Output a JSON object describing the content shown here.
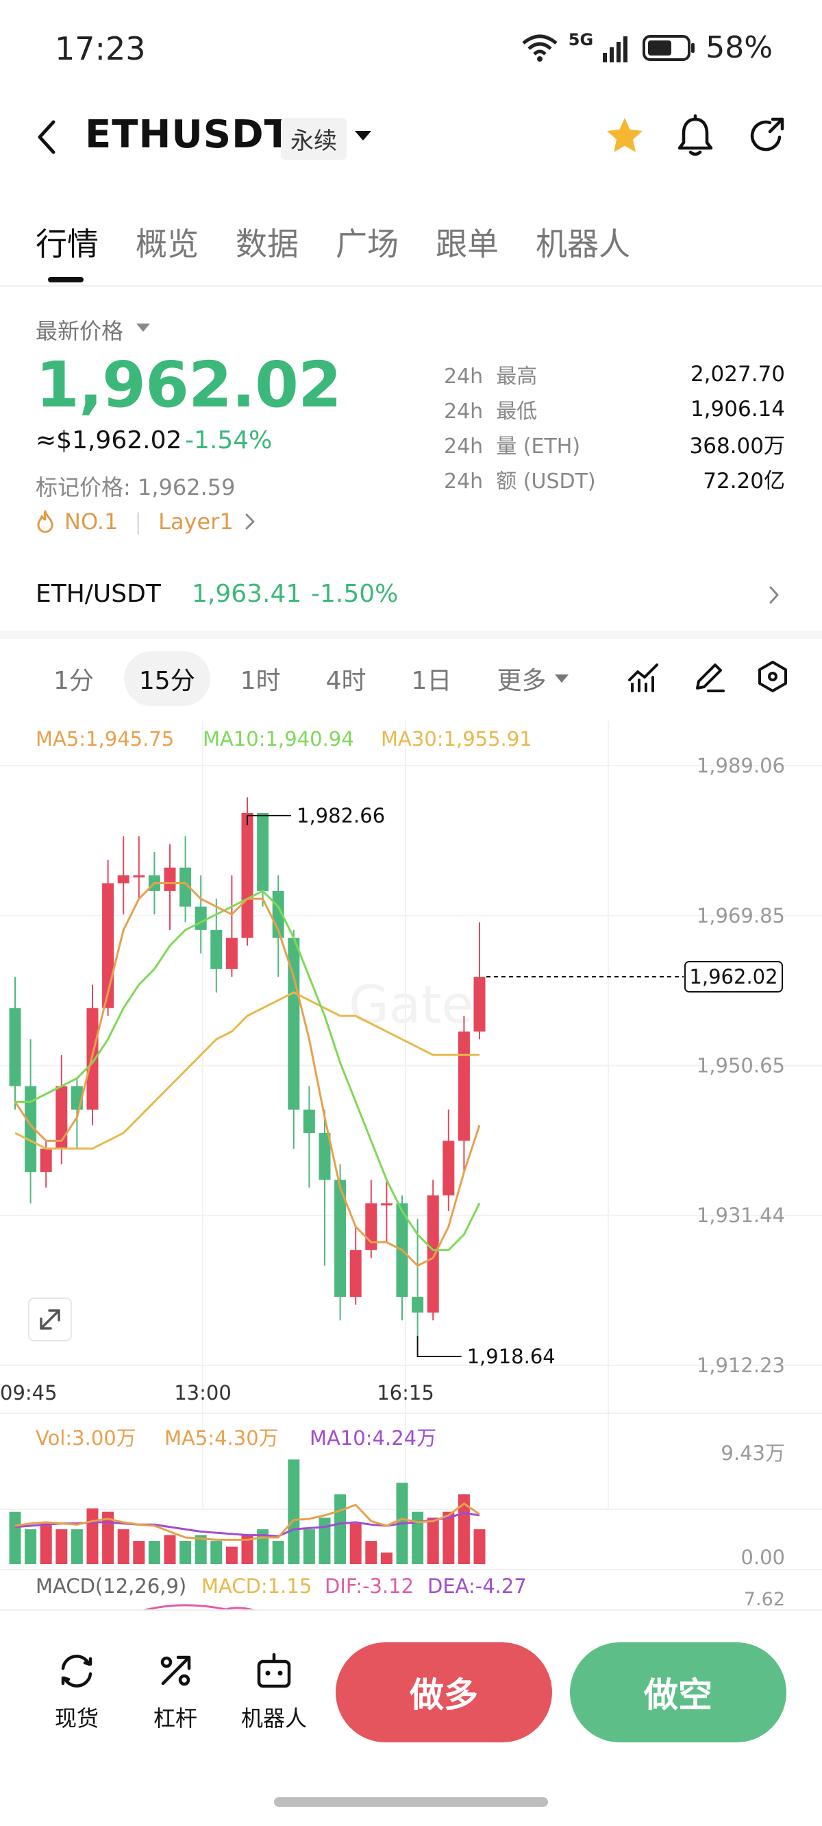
{
  "status_bar": {
    "time": "17:23",
    "network": "5G",
    "battery": "58%"
  },
  "header": {
    "pair": "ETHUSDT",
    "contract_type": "永续"
  },
  "tabs": [
    "行情",
    "概览",
    "数据",
    "广场",
    "跟单",
    "机器人"
  ],
  "price": {
    "label": "最新价格",
    "last": "1,962.02",
    "usd_approx": "≈$1,962.02",
    "change_pct": "-1.54%",
    "mark_price": "标记价格: 1,962.59",
    "rank_tag": "NO.1",
    "category_tag": "Layer1"
  },
  "stats": [
    {
      "period": "24h",
      "label": "最高",
      "value": "2,027.70"
    },
    {
      "period": "24h",
      "label": "最低",
      "value": "1,906.14"
    },
    {
      "period": "24h",
      "label": "量 (ETH)",
      "value": "368.00万"
    },
    {
      "period": "24h",
      "label": "额 (USDT)",
      "value": "72.20亿"
    }
  ],
  "spot": {
    "pair": "ETH/USDT",
    "price": "1,963.41",
    "change_pct": "-1.50%"
  },
  "intervals": [
    "1分",
    "15分",
    "1时",
    "4时",
    "1日",
    "更多"
  ],
  "active_interval": "15分",
  "colors": {
    "up": "#e5465a",
    "down": "#4cb87e",
    "ma5": "#e8a04c",
    "ma10": "#7ed957",
    "ma30": "#e8b84c",
    "macd_dif": "#e05ba8",
    "macd_dea": "#a04cd0"
  },
  "chart_data": {
    "type": "candlestick",
    "ma_legend": {
      "ma5": "MA5:1,945.75",
      "ma10": "MA10:1,940.94",
      "ma30": "MA30:1,955.91"
    },
    "y_ticks": [
      "1,989.06",
      "1,969.85",
      "1,950.65",
      "1,931.44",
      "1,912.23"
    ],
    "y_tick_values": [
      1989.06,
      1969.85,
      1950.65,
      1931.44,
      1912.23
    ],
    "x_ticks": [
      "09:45",
      "13:00",
      "16:15"
    ],
    "high_label": "1,982.66",
    "high_value": 1982.66,
    "low_label": "1,918.64",
    "low_value": 1918.64,
    "last_label": "1,962.02",
    "last_value": 1962.02,
    "candles": [
      [
        1958,
        1948,
        1962,
        1945
      ],
      [
        1948,
        1937,
        1954,
        1933
      ],
      [
        1937,
        1940,
        1941,
        1935
      ],
      [
        1940,
        1948,
        1952,
        1938
      ],
      [
        1948,
        1945,
        1949,
        1940
      ],
      [
        1945,
        1958,
        1961,
        1943
      ],
      [
        1958,
        1974,
        1977,
        1957
      ],
      [
        1974,
        1975,
        1980,
        1970
      ],
      [
        1975,
        1975,
        1980,
        1972
      ],
      [
        1975,
        1973,
        1978,
        1970
      ],
      [
        1973,
        1976,
        1979,
        1968
      ],
      [
        1976,
        1971,
        1980,
        1969
      ],
      [
        1971,
        1968,
        1975,
        1965
      ],
      [
        1968,
        1963,
        1972,
        1960
      ],
      [
        1963,
        1967,
        1975,
        1962
      ],
      [
        1967,
        1983,
        1985,
        1966
      ],
      [
        1983,
        1973,
        1983,
        1971
      ],
      [
        1973,
        1967,
        1975,
        1962
      ],
      [
        1967,
        1945,
        1968,
        1940
      ],
      [
        1945,
        1942,
        1948,
        1935
      ],
      [
        1942,
        1936,
        1945,
        1925
      ],
      [
        1936,
        1921,
        1938,
        1918
      ],
      [
        1921,
        1927,
        1930,
        1920
      ],
      [
        1927,
        1933,
        1936,
        1926
      ],
      [
        1933,
        1933,
        1936,
        1928
      ],
      [
        1933,
        1921,
        1934,
        1918
      ],
      [
        1921,
        1919,
        1931,
        1916
      ],
      [
        1919,
        1934,
        1936,
        1918
      ],
      [
        1934,
        1941,
        1945,
        1932
      ],
      [
        1941,
        1955,
        1957,
        1937
      ],
      [
        1955,
        1962,
        1969,
        1954
      ]
    ],
    "ma5": [
      1946,
      1943,
      1941,
      1941,
      1944,
      1952,
      1960,
      1968,
      1972,
      1974,
      1974,
      1974,
      1972,
      1971,
      1970,
      1972,
      1972,
      1968,
      1962,
      1954,
      1944,
      1935,
      1930,
      1928,
      1928,
      1927,
      1925,
      1926,
      1930,
      1937,
      1943
    ],
    "ma10": [
      1946,
      1946,
      1947,
      1948,
      1949,
      1951,
      1954,
      1958,
      1961,
      1963,
      1966,
      1968,
      1969,
      1970,
      1971,
      1972,
      1973,
      1971,
      1967,
      1962,
      1957,
      1951,
      1946,
      1941,
      1936,
      1932,
      1929,
      1927,
      1927,
      1929,
      1933
    ],
    "ma30": [
      1942,
      1941,
      1940,
      1940,
      1940,
      1940,
      1941,
      1942,
      1944,
      1946,
      1948,
      1950,
      1952,
      1954,
      1955,
      1957,
      1958,
      1959,
      1960,
      1959,
      1958,
      1957,
      1957,
      1956,
      1955,
      1954,
      1953,
      1952,
      1952,
      1952,
      1952
    ],
    "volume_legend": {
      "vol": "Vol:3.00万",
      "ma5": "MA5:4.30万",
      "ma10": "MA10:4.24万"
    },
    "volume_ticks": [
      "9.43万",
      "0.00"
    ],
    "volume_max": 9.43,
    "volumes": [
      4.5,
      3.0,
      3.5,
      3.0,
      3.0,
      4.8,
      4.5,
      3.0,
      2.0,
      2.0,
      2.5,
      2.0,
      2.5,
      2.0,
      1.5,
      2.5,
      3.0,
      2.0,
      9.0,
      3.0,
      4.0,
      6.0,
      3.5,
      2.0,
      1.0,
      7.0,
      4.5,
      4.0,
      4.5,
      6.0,
      3.0
    ],
    "volume_ma5": [
      3.3,
      3.5,
      3.6,
      3.5,
      3.4,
      3.7,
      3.9,
      3.6,
      3.4,
      3.3,
      2.8,
      2.3,
      2.2,
      2.1,
      2.1,
      2.1,
      2.3,
      2.3,
      3.8,
      3.9,
      4.2,
      4.6,
      5.1,
      3.7,
      3.3,
      3.9,
      3.6,
      3.7,
      4.2,
      5.2,
      4.3
    ],
    "volume_ma10": [
      3.2,
      3.3,
      3.4,
      3.5,
      3.5,
      3.6,
      3.6,
      3.5,
      3.4,
      3.4,
      3.2,
      3.0,
      2.8,
      2.7,
      2.6,
      2.5,
      2.5,
      2.4,
      3.0,
      3.1,
      3.2,
      3.5,
      3.6,
      3.4,
      3.3,
      3.5,
      3.6,
      3.8,
      4.0,
      4.4,
      4.2
    ],
    "macd_legend": {
      "title": "MACD(12,26,9)",
      "macd": "MACD:1.15",
      "dif": "DIF:-3.12",
      "dea": "DEA:-4.27"
    },
    "macd_tick": "7.62"
  },
  "actions": {
    "spot": "现货",
    "leverage": "杠杆",
    "bot": "机器人",
    "long": "做多",
    "short": "做空"
  }
}
